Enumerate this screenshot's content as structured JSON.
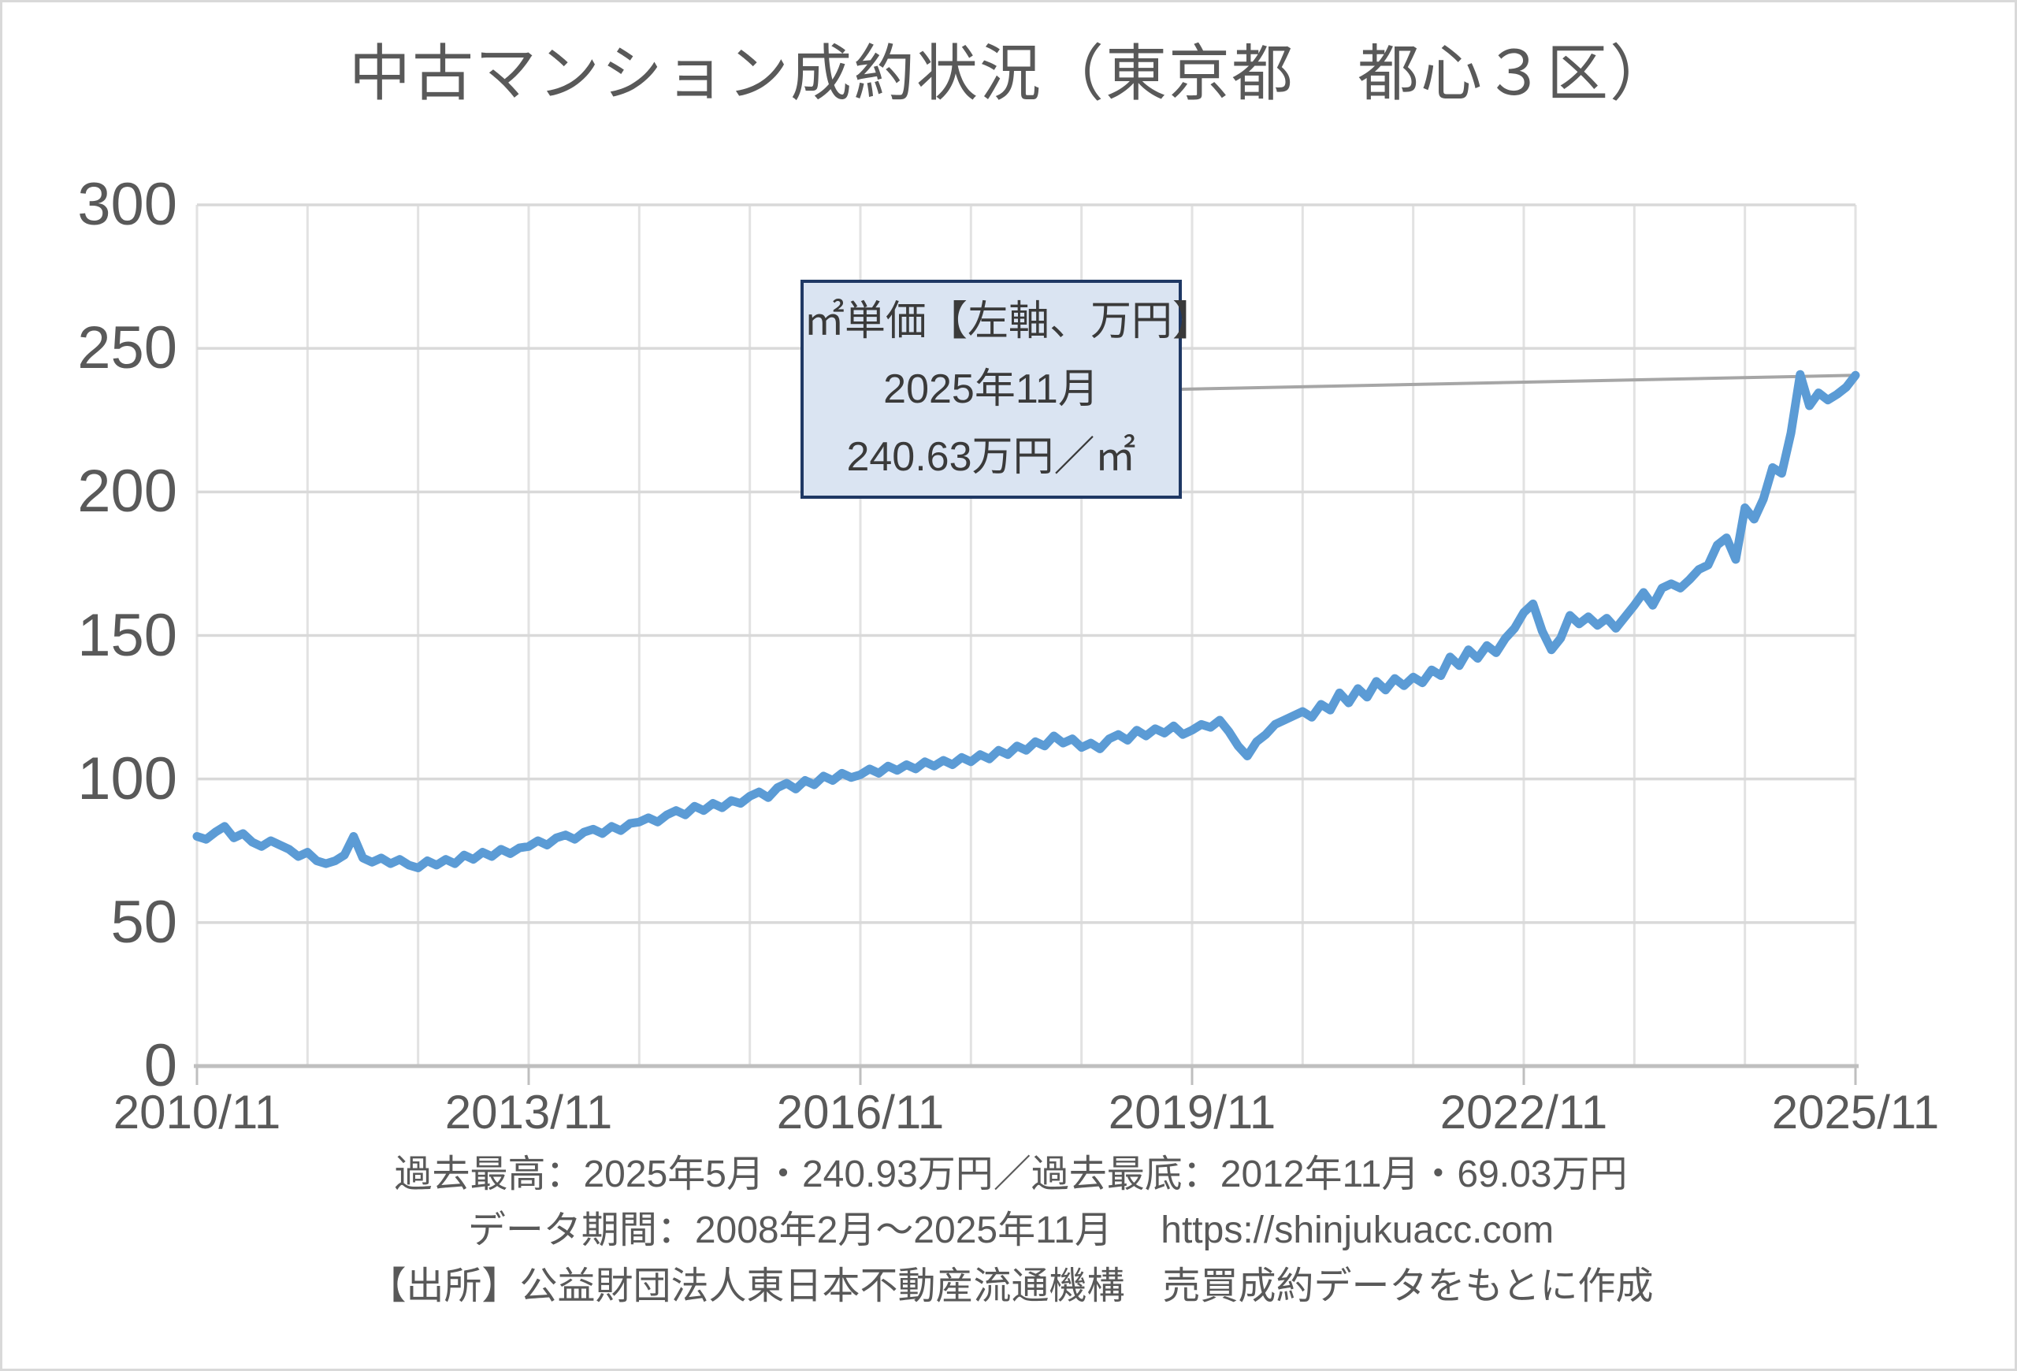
{
  "chart": {
    "title": "中古マンション成約状況（東京都　都心３区）",
    "y_ticks": [
      "300",
      "250",
      "200",
      "150",
      "100",
      "50",
      "0"
    ],
    "x_ticks": [
      "2010/11",
      "2013/11",
      "2016/11",
      "2019/11",
      "2022/11",
      "2025/11"
    ],
    "annotation": {
      "line1": "㎡単価【左軸、万円】",
      "line2": "2025年11月",
      "line3": "240.63万円／㎡"
    },
    "footer": {
      "line1": "過去最高：2025年5月・240.93万円／過去最底：2012年11月・69.03万円",
      "line2": "データ期間：2008年2月～2025年11月　 https://shinjukuacc.com",
      "line3": "【出所】公益財団法人東日本不動産流通機構　売買成約データをもとに作成"
    },
    "colors": {
      "series": "#5B9BD5",
      "gridline_h": "#D9D9D9",
      "gridline_v": "#E2E2E2",
      "axis": "#BFBFBF",
      "text": "#595959",
      "callout_fill": "#DAE4F2",
      "callout_border": "#1F3864",
      "leader": "#A6A6A6"
    }
  },
  "chart_data": {
    "type": "line",
    "series_name": "㎡単価（左軸、万円／㎡）",
    "title": "中古マンション成約状況（東京都　都心３区）",
    "x_start": "2010/11",
    "x_end": "2025/11",
    "x_interval": "monthly",
    "x_tick_labels": [
      "2010/11",
      "2013/11",
      "2016/11",
      "2019/11",
      "2022/11",
      "2025/11"
    ],
    "y_axis": {
      "min": 0,
      "max": 300,
      "step": 50
    },
    "grid": true,
    "legend": false,
    "values": [
      80.0,
      79.0,
      81.5,
      83.5,
      79.5,
      81.0,
      78.0,
      76.5,
      78.5,
      77.0,
      75.5,
      73.0,
      74.5,
      71.5,
      70.5,
      71.5,
      73.5,
      80.0,
      72.5,
      71.0,
      72.5,
      70.5,
      72.0,
      70.0,
      69.03,
      71.5,
      70.0,
      72.0,
      70.5,
      73.5,
      72.0,
      74.5,
      73.0,
      75.5,
      74.0,
      76.0,
      76.5,
      78.5,
      77.0,
      79.5,
      80.5,
      79.0,
      81.5,
      82.5,
      81.0,
      83.5,
      82.0,
      84.5,
      85.0,
      86.5,
      85.0,
      87.5,
      89.0,
      87.5,
      90.5,
      89.0,
      91.5,
      90.0,
      92.5,
      91.5,
      94.0,
      95.5,
      93.5,
      97.0,
      98.5,
      96.5,
      99.5,
      98.0,
      101.0,
      99.5,
      102.0,
      100.5,
      101.5,
      103.5,
      102.0,
      104.5,
      103.0,
      105.0,
      103.5,
      106.0,
      104.5,
      106.5,
      105.0,
      107.5,
      106.0,
      108.5,
      107.0,
      110.0,
      108.5,
      111.5,
      110.0,
      113.0,
      111.5,
      115.0,
      112.5,
      114.0,
      111.0,
      112.5,
      110.5,
      114.0,
      115.5,
      113.5,
      117.0,
      115.0,
      117.5,
      116.0,
      118.5,
      115.5,
      117.0,
      119.0,
      118.0,
      120.5,
      116.5,
      111.5,
      108.0,
      113.0,
      115.5,
      119.0,
      120.5,
      122.0,
      123.5,
      121.5,
      126.0,
      124.0,
      130.0,
      126.5,
      131.5,
      128.5,
      134.0,
      131.0,
      135.0,
      132.5,
      135.5,
      133.5,
      138.0,
      136.0,
      142.5,
      139.5,
      145.0,
      142.0,
      146.5,
      144.0,
      149.0,
      152.5,
      158.0,
      161.0,
      151.5,
      145.0,
      149.0,
      157.0,
      154.0,
      156.5,
      153.5,
      156.0,
      152.5,
      156.5,
      160.5,
      165.0,
      160.5,
      166.5,
      168.0,
      166.5,
      169.5,
      173.0,
      174.5,
      181.5,
      184.0,
      176.5,
      194.5,
      190.5,
      197.5,
      208.5,
      206.5,
      220.5,
      240.93,
      230.0,
      234.5,
      232.0,
      234.0,
      236.5,
      240.63
    ],
    "latest": {
      "month": "2025年11月",
      "value": 240.63
    },
    "record_high": {
      "month": "2025年5月",
      "value": 240.93
    },
    "record_low": {
      "month": "2012年11月",
      "value": 69.03
    }
  }
}
